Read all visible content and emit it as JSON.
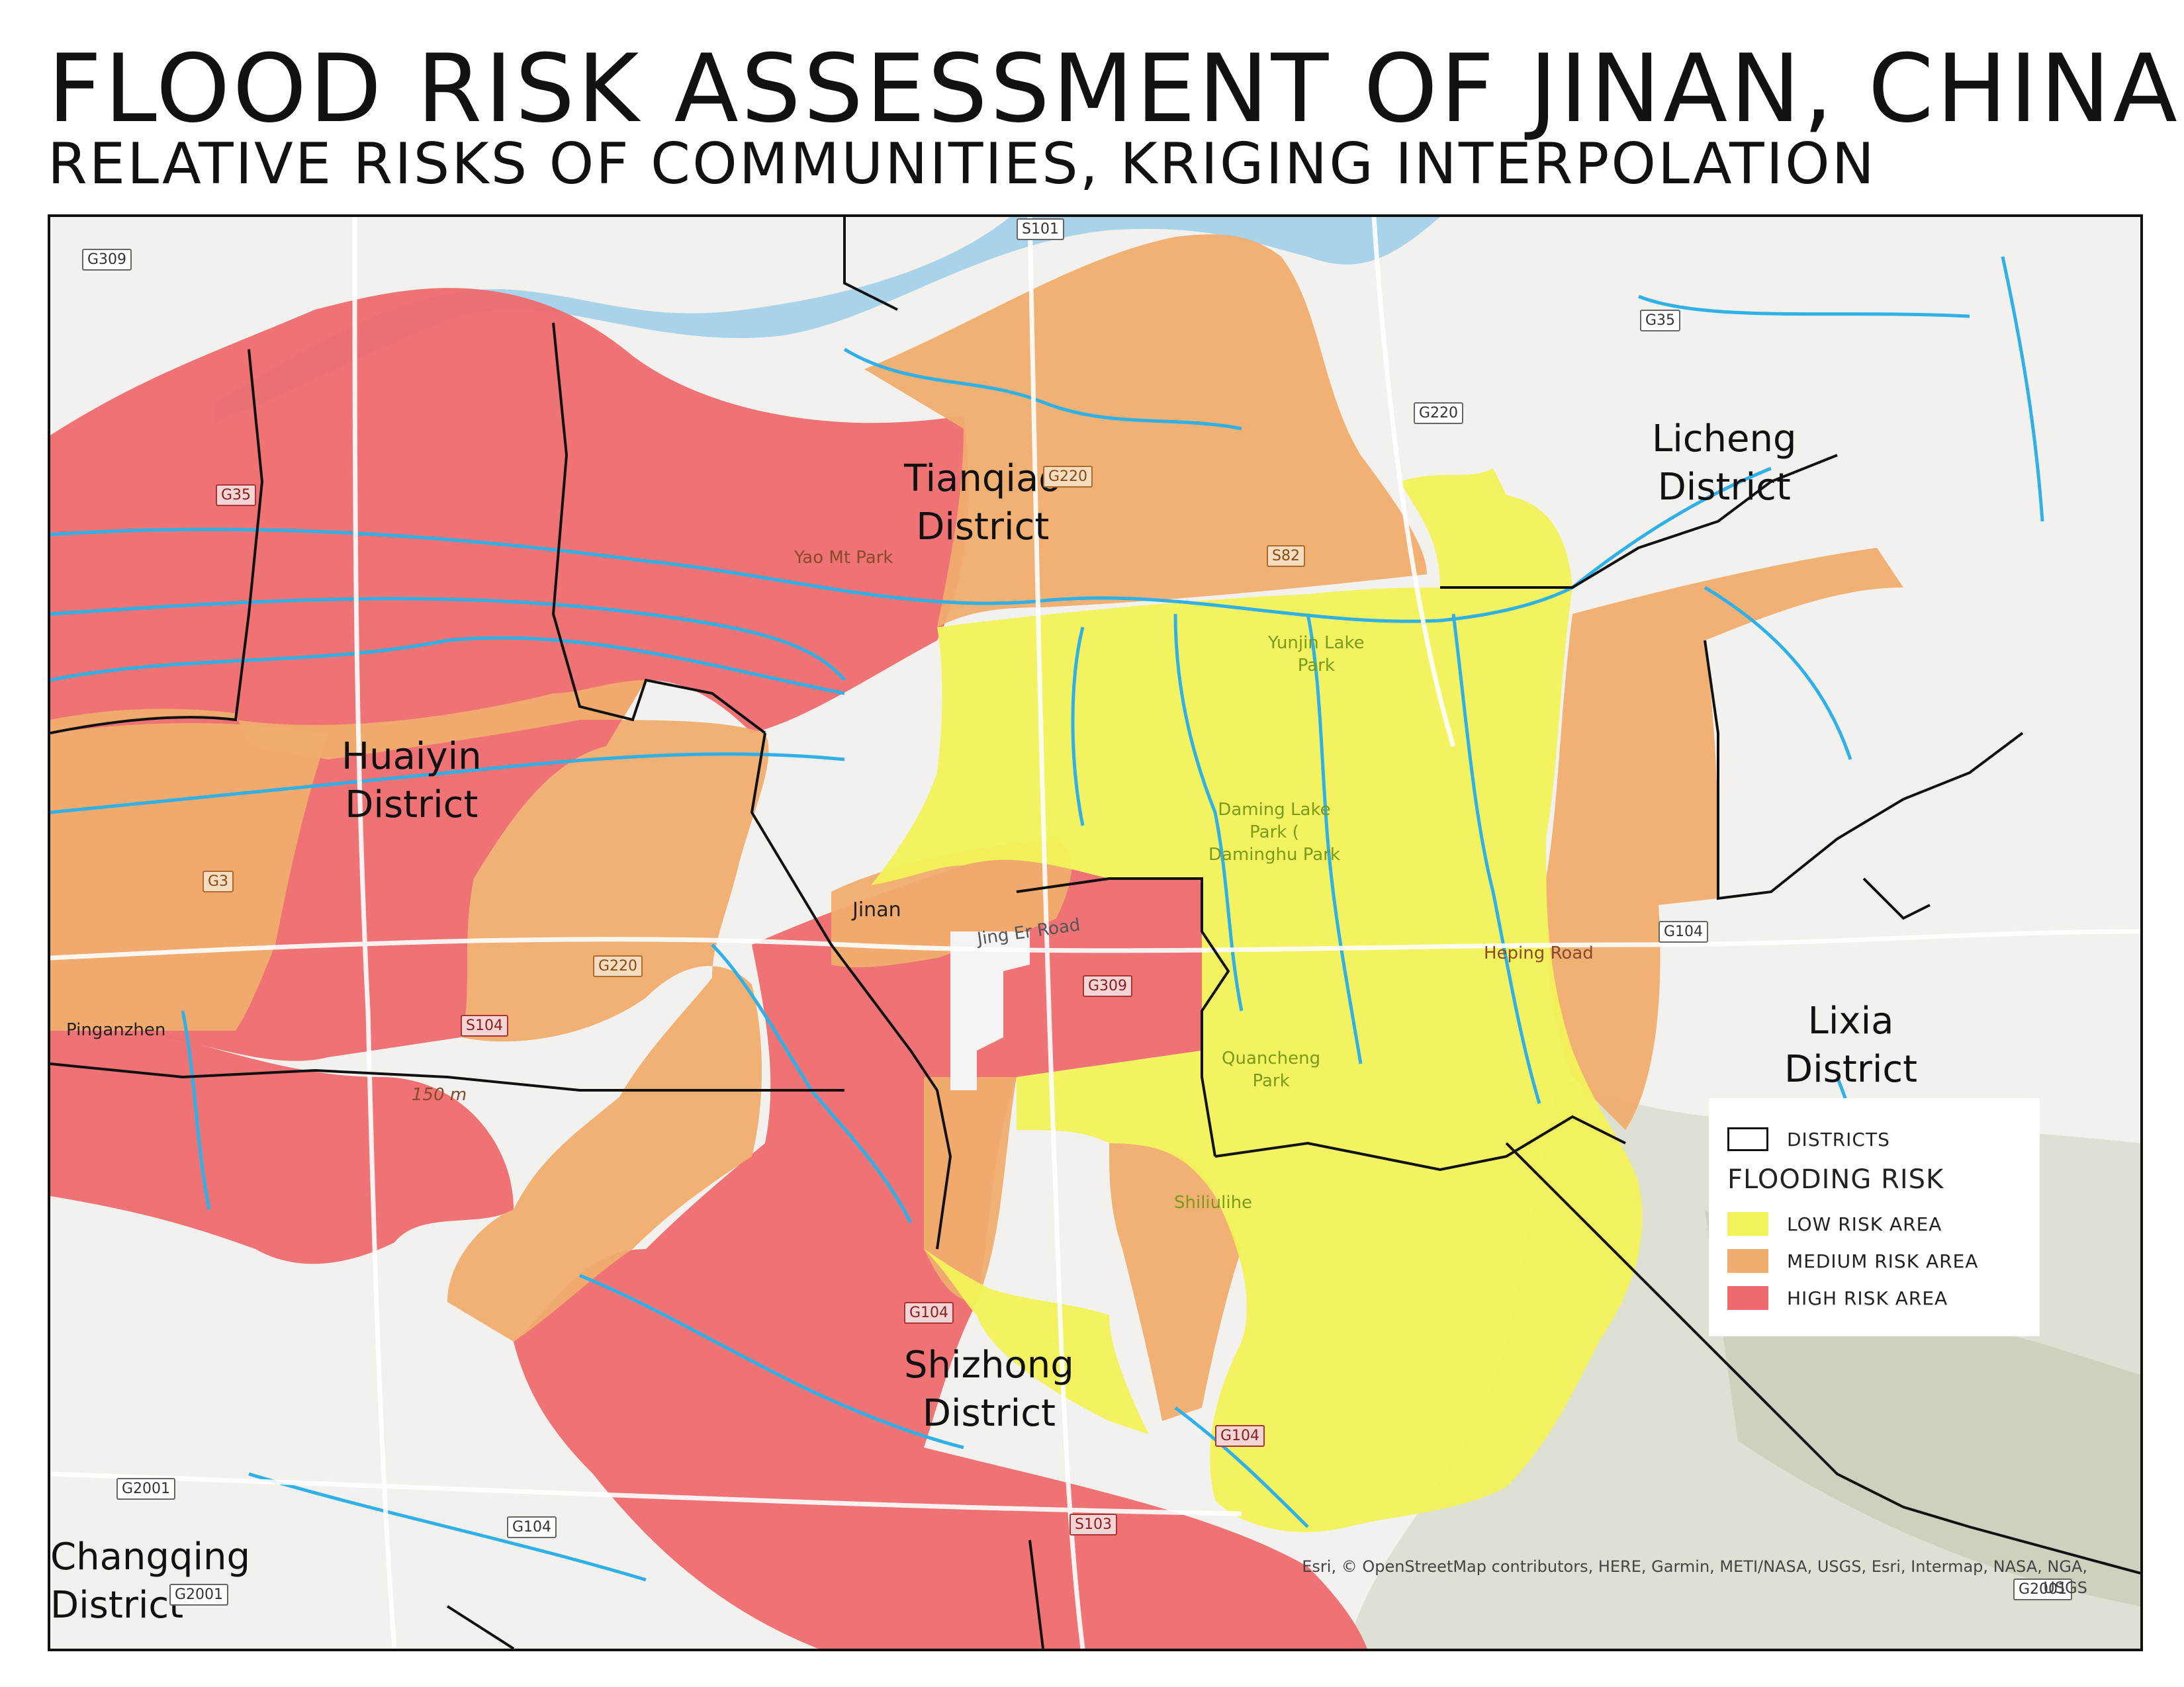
{
  "title": "FLOOD RISK ASSESSMENT OF JINAN, CHINA",
  "subtitle": "RELATIVE RISKS OF COMMUNITIES, KRIGING INTERPOLATION",
  "colors": {
    "low": "#f2f25a",
    "medium": "#f0ad6e",
    "high": "#ee6a6e",
    "water": "#2fb0e6",
    "district_border": "#111111",
    "basemap": "#f2f1ee"
  },
  "districts": [
    {
      "name_line1": "Tianqiao",
      "name_line2": "District"
    },
    {
      "name_line1": "Licheng",
      "name_line2": "District"
    },
    {
      "name_line1": "Huaiyin",
      "name_line2": "District"
    },
    {
      "name_line1": "Lixia",
      "name_line2": "District"
    },
    {
      "name_line1": "Shizhong",
      "name_line2": "District"
    },
    {
      "name_line1": "Changqing",
      "name_line2": "District"
    }
  ],
  "roads": [
    "S101",
    "G309",
    "G35",
    "G220",
    "G35",
    "G220",
    "S82",
    "G3",
    "G220",
    "S104",
    "G104",
    "G309",
    "G104",
    "G104",
    "G2001",
    "G104",
    "S103",
    "G2001",
    "G2001"
  ],
  "places": {
    "yao_mt_park": "Yao Mt Park",
    "yunjin_l1": "Yunjin Lake",
    "yunjin_l2": "Park",
    "daming_l1": "Daming Lake",
    "daming_l2": "Park (",
    "daming_l3": "Daminghu Park",
    "jinan": "Jinan",
    "jing_er_road": "Jing Er Road",
    "heping_road": "Heping Road",
    "quancheng_l1": "Quancheng",
    "quancheng_l2": "Park",
    "shiliulihe": "Shiliulihe",
    "pinganzhen": "Pinganzhen",
    "elevation": "150 m"
  },
  "attribution_line1": "Esri, © OpenStreetMap contributors, HERE, Garmin, METI/NASA, USGS, Esri, Intermap, NASA, NGA,",
  "attribution_line2": "USGS",
  "legend": {
    "districts_label": "DISTRICTS",
    "heading": "FLOODING RISK",
    "items": [
      {
        "label": "LOW RISK AREA",
        "level": "low"
      },
      {
        "label": "MEDIUM RISK AREA",
        "level": "medium"
      },
      {
        "label": "HIGH RISK AREA",
        "level": "high"
      }
    ]
  }
}
